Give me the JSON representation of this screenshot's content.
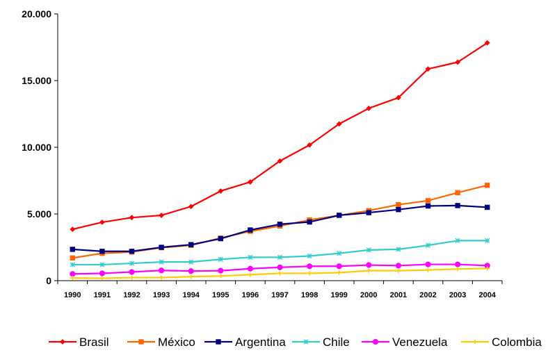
{
  "chart_data": {
    "type": "line",
    "x": [
      "1990",
      "1991",
      "1992",
      "1993",
      "1994",
      "1995",
      "1996",
      "1997",
      "1998",
      "1999",
      "2000",
      "2001",
      "2002",
      "2003",
      "2004"
    ],
    "ylim": [
      0,
      20000
    ],
    "yticks": [
      0,
      5000,
      10000,
      15000,
      20000
    ],
    "ytick_labels": [
      "0",
      "5.000",
      "10.000",
      "15.000",
      "20.000"
    ],
    "grid": false,
    "legend_position": "bottom",
    "series": [
      {
        "name": "Brasil",
        "color": "#ff0000",
        "marker": "diamond",
        "values": [
          3850,
          4380,
          4730,
          4900,
          5560,
          6720,
          7400,
          8970,
          10170,
          11750,
          12920,
          13720,
          15870,
          16380,
          17830
        ]
      },
      {
        "name": "México",
        "color": "#ff6600",
        "marker": "square",
        "values": [
          1700,
          2050,
          2150,
          2470,
          2650,
          3200,
          3700,
          4100,
          4550,
          4900,
          5250,
          5700,
          6000,
          6600,
          7150
        ]
      },
      {
        "name": "Argentina",
        "color": "#000080",
        "marker": "square",
        "values": [
          2350,
          2200,
          2200,
          2500,
          2700,
          3150,
          3800,
          4230,
          4400,
          4900,
          5100,
          5330,
          5600,
          5630,
          5500
        ]
      },
      {
        "name": "Chile",
        "color": "#33cccc",
        "marker": "asterisk",
        "values": [
          1200,
          1200,
          1300,
          1400,
          1400,
          1600,
          1750,
          1750,
          1850,
          2050,
          2300,
          2350,
          2650,
          3000,
          3000
        ]
      },
      {
        "name": "Venezuela",
        "color": "#ff00ff",
        "marker": "circle",
        "values": [
          500,
          550,
          650,
          770,
          720,
          750,
          900,
          1000,
          1080,
          1080,
          1170,
          1130,
          1220,
          1220,
          1130
        ]
      },
      {
        "name": "Colombia",
        "color": "#ffcc00",
        "marker": "plus",
        "values": [
          200,
          180,
          230,
          230,
          300,
          350,
          450,
          550,
          550,
          600,
          750,
          750,
          800,
          870,
          920
        ]
      }
    ]
  }
}
